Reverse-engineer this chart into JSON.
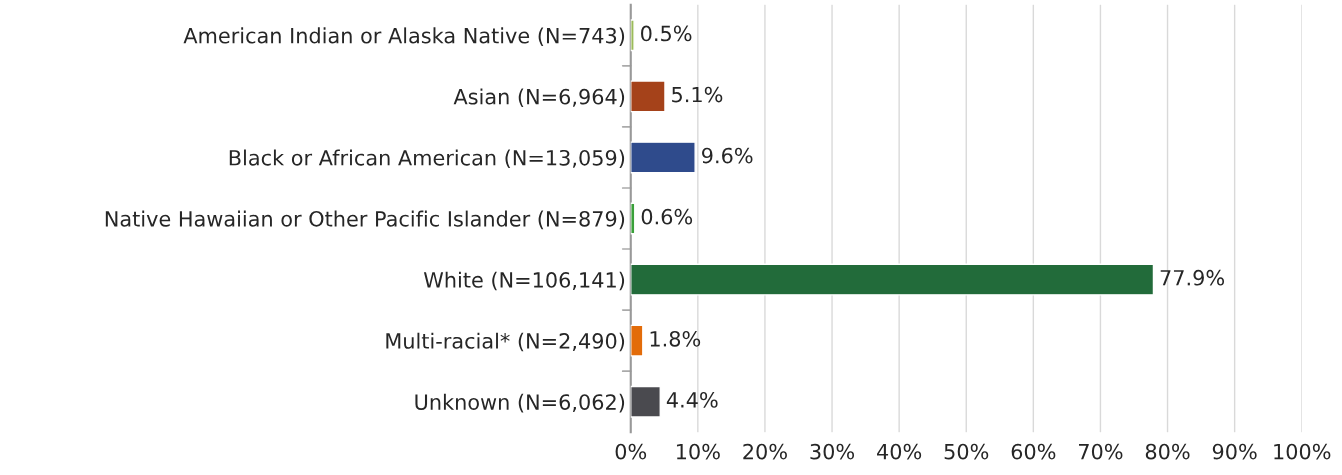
{
  "chart_data": {
    "type": "bar",
    "orientation": "horizontal",
    "categories": [
      "American Indian or Alaska Native (N=743)",
      "Asian (N=6,964)",
      "Black or African American (N=13,059)",
      "Native Hawaiian or Other Pacific Islander (N=879)",
      "White (N=106,141)",
      "Multi-racial* (N=2,490)",
      "Unknown (N=6,062)"
    ],
    "values": [
      0.5,
      5.1,
      9.6,
      0.6,
      77.9,
      1.8,
      4.4
    ],
    "colors": [
      "#9bbb59",
      "#a5421a",
      "#2f4b8c",
      "#3aa03a",
      "#226b3a",
      "#e36c0a",
      "#4a4a4f"
    ],
    "value_labels": [
      "0.5%",
      "5.1%",
      "9.6%",
      "0.6%",
      "77.9%",
      "1.8%",
      "4.4%"
    ],
    "xlim": [
      0,
      100
    ],
    "xticks": [
      {
        "value": 0,
        "label": "0%"
      },
      {
        "value": 10,
        "label": "10%"
      },
      {
        "value": 20,
        "label": "20%"
      },
      {
        "value": 30,
        "label": "30%"
      },
      {
        "value": 40,
        "label": "40%"
      },
      {
        "value": 50,
        "label": "50%"
      },
      {
        "value": 60,
        "label": "60%"
      },
      {
        "value": 70,
        "label": "70%"
      },
      {
        "value": 80,
        "label": "80%"
      },
      {
        "value": 90,
        "label": "90%"
      },
      {
        "value": 100,
        "label": "100%"
      }
    ],
    "grid": "x"
  }
}
